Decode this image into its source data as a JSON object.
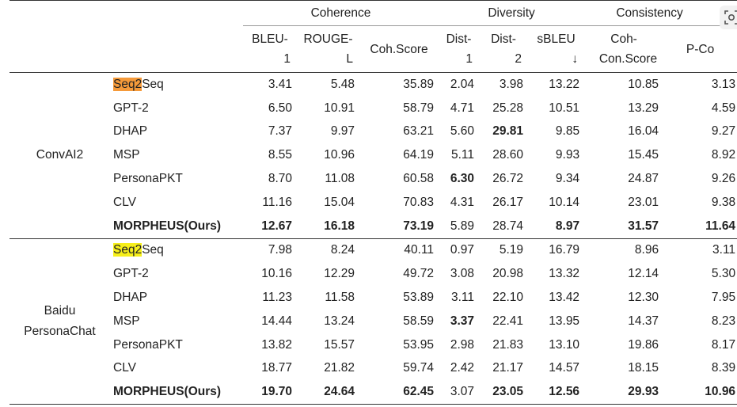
{
  "header": {
    "groups": [
      "Coherence",
      "Diversity",
      "Consistency"
    ],
    "columns": [
      [
        "BLEU-",
        "1"
      ],
      [
        "ROUGE-",
        "L"
      ],
      [
        "Coh.Score"
      ],
      [
        "Dist-",
        "1"
      ],
      [
        "Dist-",
        "2"
      ],
      [
        "sBLEU",
        "↓"
      ],
      [
        "Coh-",
        "Con.Score"
      ],
      [
        "P-Co"
      ]
    ]
  },
  "sections": [
    {
      "dataset": [
        "ConvAI2"
      ],
      "rows": [
        {
          "model_hl": "Seq2",
          "model_rest": "Seq",
          "values": [
            "3.41",
            "5.48",
            "35.89",
            "2.04",
            "3.98",
            "13.22",
            "10.85",
            "3.13"
          ],
          "bold": []
        },
        {
          "model_hl": "",
          "model_rest": "GPT-2",
          "values": [
            "6.50",
            "10.91",
            "58.79",
            "4.71",
            "25.28",
            "10.51",
            "13.29",
            "4.59"
          ],
          "bold": []
        },
        {
          "model_hl": "",
          "model_rest": "DHAP",
          "values": [
            "7.37",
            "9.97",
            "63.21",
            "5.60",
            "29.81",
            "9.85",
            "16.04",
            "9.27"
          ],
          "bold": [
            4
          ]
        },
        {
          "model_hl": "",
          "model_rest": "MSP",
          "values": [
            "8.55",
            "10.96",
            "64.19",
            "5.11",
            "28.60",
            "9.93",
            "15.45",
            "8.92"
          ],
          "bold": []
        },
        {
          "model_hl": "",
          "model_rest": "PersonaPKT",
          "values": [
            "8.70",
            "11.08",
            "60.58",
            "6.30",
            "26.72",
            "9.34",
            "24.87",
            "9.26"
          ],
          "bold": [
            3
          ]
        },
        {
          "model_hl": "",
          "model_rest": "CLV",
          "values": [
            "11.16",
            "15.04",
            "70.83",
            "4.31",
            "26.17",
            "10.14",
            "23.01",
            "9.38"
          ],
          "bold": []
        },
        {
          "model_hl": "",
          "model_rest": "MORPHEUS(Ours)",
          "values": [
            "12.67",
            "16.18",
            "73.19",
            "5.89",
            "28.74",
            "8.97",
            "31.57",
            "11.64"
          ],
          "bold": [
            0,
            1,
            2,
            5,
            6,
            7
          ],
          "model_bold": true
        }
      ]
    },
    {
      "dataset": [
        "Baidu",
        "PersonaChat"
      ],
      "rows": [
        {
          "model_hl": "Seq2",
          "model_rest": "Seq",
          "values": [
            "7.98",
            "8.24",
            "40.11",
            "0.97",
            "5.19",
            "16.79",
            "8.96",
            "3.11"
          ],
          "bold": []
        },
        {
          "model_hl": "",
          "model_rest": "GPT-2",
          "values": [
            "10.16",
            "12.29",
            "49.72",
            "3.08",
            "20.98",
            "13.32",
            "12.14",
            "5.30"
          ],
          "bold": []
        },
        {
          "model_hl": "",
          "model_rest": "DHAP",
          "values": [
            "11.23",
            "11.58",
            "53.89",
            "3.11",
            "22.10",
            "13.42",
            "12.30",
            "7.95"
          ],
          "bold": []
        },
        {
          "model_hl": "",
          "model_rest": "MSP",
          "values": [
            "14.44",
            "13.24",
            "58.59",
            "3.37",
            "22.41",
            "13.95",
            "14.37",
            "8.23"
          ],
          "bold": [
            3
          ]
        },
        {
          "model_hl": "",
          "model_rest": "PersonaPKT",
          "values": [
            "13.82",
            "15.57",
            "53.95",
            "2.98",
            "21.83",
            "13.10",
            "19.86",
            "8.17"
          ],
          "bold": []
        },
        {
          "model_hl": "",
          "model_rest": "CLV",
          "values": [
            "18.77",
            "21.82",
            "59.74",
            "2.42",
            "21.17",
            "14.57",
            "18.15",
            "8.39"
          ],
          "bold": []
        },
        {
          "model_hl": "",
          "model_rest": "MORPHEUS(Ours)",
          "values": [
            "19.70",
            "24.64",
            "62.45",
            "3.07",
            "23.05",
            "12.56",
            "29.93",
            "10.96"
          ],
          "bold": [
            0,
            1,
            2,
            4,
            5,
            6,
            7
          ],
          "model_bold": true
        }
      ]
    }
  ],
  "overlay": {
    "icon": "visual-search-icon"
  },
  "colors": {
    "highlight_first": "#f59a3a",
    "highlight_second": "#f6ef1a"
  }
}
